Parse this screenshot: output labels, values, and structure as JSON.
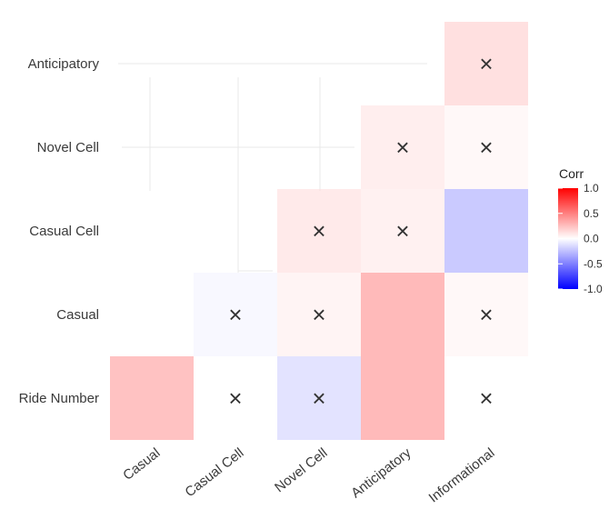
{
  "chart_data": {
    "type": "heatmap",
    "title": "",
    "xlabel": "",
    "ylabel": "",
    "x_categories": [
      "Casual",
      "Casual Cell",
      "Novel Cell",
      "Anticipatory",
      "Informational"
    ],
    "y_categories": [
      "Ride Number",
      "Casual",
      "Casual Cell",
      "Novel Cell",
      "Anticipatory"
    ],
    "cells": [
      {
        "x": "Casual",
        "y": "Ride Number",
        "value": 0.4,
        "insignificant": false
      },
      {
        "x": "Casual Cell",
        "y": "Ride Number",
        "value": 0.0,
        "insignificant": true
      },
      {
        "x": "Novel Cell",
        "y": "Ride Number",
        "value": -0.2,
        "insignificant": true
      },
      {
        "x": "Anticipatory",
        "y": "Ride Number",
        "value": 0.45,
        "insignificant": false
      },
      {
        "x": "Informational",
        "y": "Ride Number",
        "value": 0.0,
        "insignificant": true
      },
      {
        "x": "Casual Cell",
        "y": "Casual",
        "value": -0.05,
        "insignificant": true
      },
      {
        "x": "Novel Cell",
        "y": "Casual",
        "value": 0.08,
        "insignificant": true
      },
      {
        "x": "Anticipatory",
        "y": "Casual",
        "value": 0.45,
        "insignificant": false
      },
      {
        "x": "Informational",
        "y": "Casual",
        "value": 0.05,
        "insignificant": true
      },
      {
        "x": "Novel Cell",
        "y": "Casual Cell",
        "value": 0.15,
        "insignificant": true
      },
      {
        "x": "Anticipatory",
        "y": "Casual Cell",
        "value": 0.1,
        "insignificant": true
      },
      {
        "x": "Informational",
        "y": "Casual Cell",
        "value": -0.35,
        "insignificant": false
      },
      {
        "x": "Anticipatory",
        "y": "Novel Cell",
        "value": 0.12,
        "insignificant": true
      },
      {
        "x": "Informational",
        "y": "Novel Cell",
        "value": 0.05,
        "insignificant": true
      },
      {
        "x": "Informational",
        "y": "Anticipatory",
        "value": 0.22,
        "insignificant": true
      }
    ],
    "legend": {
      "title": "Corr",
      "ticks": [
        "1.0",
        "0.5",
        "0.0",
        "-0.5",
        "-1.0"
      ],
      "range": [
        -1.0,
        1.0
      ],
      "placement": "right"
    },
    "colors": {
      "low": "#0000ff",
      "mid": "#ffffff",
      "high": "#ff0000"
    },
    "insignificant_marker": "×",
    "grid": true
  }
}
